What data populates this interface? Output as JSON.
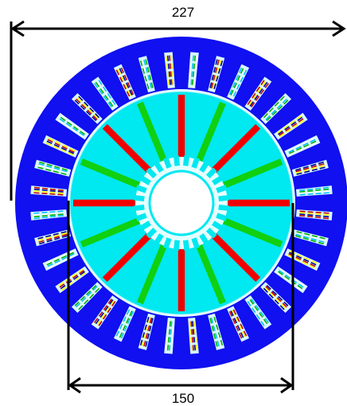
{
  "dimensions": {
    "outer_label": "227",
    "inner_label": "150"
  },
  "diagram": {
    "stator_slot_count": 36,
    "rotor_pole_count": 16,
    "rotor_notch_count": 28,
    "colors": {
      "stator": "#1010f0",
      "rotor": "#00e8f0",
      "gap": "#e6ffff",
      "hole": "#ffffff",
      "magnet_red": "#f00000",
      "magnet_green": "#10d010",
      "outline": "#b0f4f8",
      "dimension_line": "#000000"
    },
    "winding_colors": [
      "#c00000",
      "#00b000",
      "#ffff00",
      "#ffffff",
      "#000090",
      "#00c0ff"
    ]
  }
}
